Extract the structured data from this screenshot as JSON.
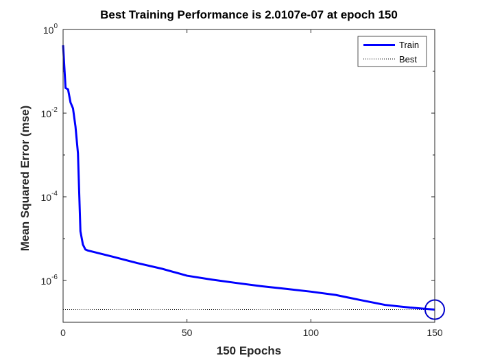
{
  "chart_data": {
    "type": "line",
    "title": "Best Training Performance is 2.0107e-07 at epoch 150",
    "xlabel": "150 Epochs",
    "ylabel": "Mean Squared Error  (mse)",
    "xlim": [
      0,
      150
    ],
    "ylim": [
      1e-07,
      1
    ],
    "yscale": "log",
    "x_ticks": [
      {
        "value": 0,
        "label": "0"
      },
      {
        "value": 50,
        "label": "50"
      },
      {
        "value": 100,
        "label": "100"
      },
      {
        "value": 150,
        "label": "150"
      }
    ],
    "y_ticks": [
      {
        "value": 1,
        "base": "10",
        "exp": "0"
      },
      {
        "value": 0.01,
        "base": "10",
        "exp": "-2"
      },
      {
        "value": 0.0001,
        "base": "10",
        "exp": "-4"
      },
      {
        "value": 1e-06,
        "base": "10",
        "exp": "-6"
      }
    ],
    "legend": {
      "placement": "top-right",
      "entries": [
        {
          "label": "Train",
          "style": "solid",
          "color": "#0000ff"
        },
        {
          "label": "Best",
          "style": "dotted",
          "color": "#000000"
        }
      ]
    },
    "series": [
      {
        "name": "Train",
        "color": "#0000ff",
        "points": [
          [
            0,
            0.42
          ],
          [
            1,
            0.04
          ],
          [
            2,
            0.037
          ],
          [
            3,
            0.018
          ],
          [
            4,
            0.013
          ],
          [
            5,
            0.0048
          ],
          [
            6,
            0.0011
          ],
          [
            7,
            1.5e-05
          ],
          [
            8,
            7.2e-06
          ],
          [
            9,
            5.5e-06
          ],
          [
            10,
            5.2e-06
          ],
          [
            20,
            3.7e-06
          ],
          [
            30,
            2.6e-06
          ],
          [
            40,
            1.9e-06
          ],
          [
            50,
            1.3e-06
          ],
          [
            60,
            1.05e-06
          ],
          [
            70,
            8.7e-07
          ],
          [
            80,
            7.3e-07
          ],
          [
            90,
            6.3e-07
          ],
          [
            100,
            5.4e-07
          ],
          [
            110,
            4.5e-07
          ],
          [
            120,
            3.4e-07
          ],
          [
            130,
            2.6e-07
          ],
          [
            140,
            2.25e-07
          ],
          [
            150,
            2.01e-07
          ]
        ]
      }
    ],
    "best": {
      "epoch": 150,
      "value": 2.0107e-07,
      "color": "#000000",
      "marker_color": "#0000cc"
    }
  }
}
